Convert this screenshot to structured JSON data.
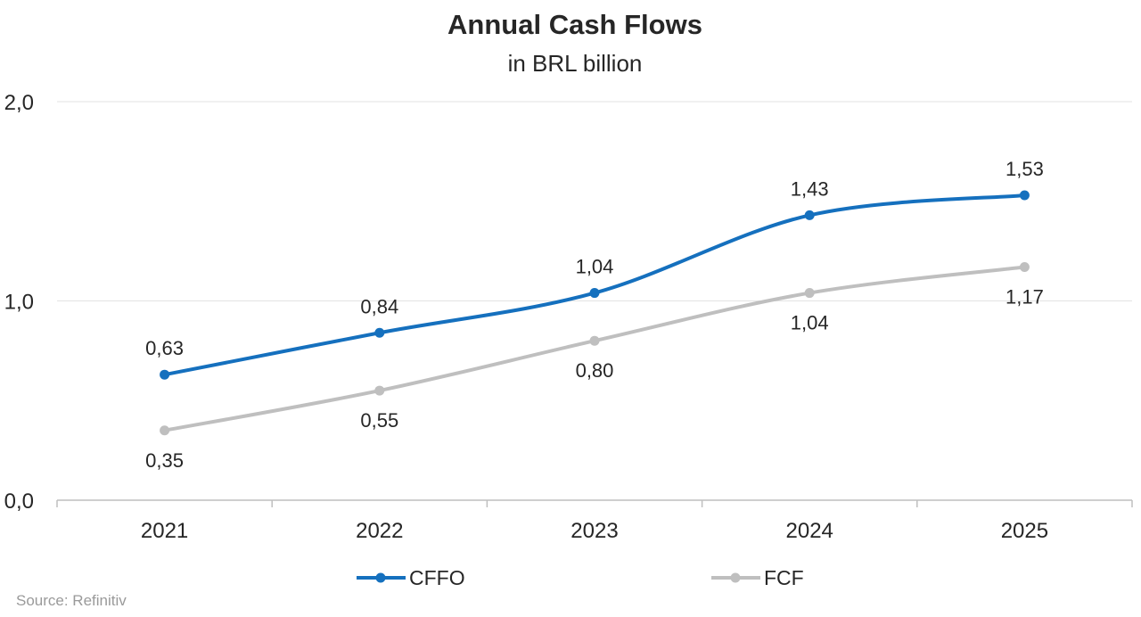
{
  "title": "Annual Cash Flows",
  "subtitle": "in BRL billion",
  "source": "Source: Refinitiv",
  "chart_data": {
    "type": "line",
    "title": "Annual Cash Flows",
    "subtitle": "in BRL billion",
    "categories": [
      "2021",
      "2022",
      "2023",
      "2024",
      "2025"
    ],
    "ylim": [
      0,
      2
    ],
    "yticks": [
      0,
      1,
      2
    ],
    "ytick_labels": [
      "0,0",
      "1,0",
      "2,0"
    ],
    "grid": true,
    "smooth": true,
    "legend_position": "bottom",
    "series": [
      {
        "name": "CFFO",
        "color": "#1570be",
        "values": [
          0.63,
          0.84,
          1.04,
          1.43,
          1.53
        ],
        "labels": [
          "0,63",
          "0,84",
          "1,04",
          "1,43",
          "1,53"
        ],
        "label_position": "above"
      },
      {
        "name": "FCF",
        "color": "#bfbfbf",
        "values": [
          0.35,
          0.55,
          0.8,
          1.04,
          1.17
        ],
        "labels": [
          "0,35",
          "0,55",
          "0,80",
          "1,04",
          "1,17"
        ],
        "label_position": "below"
      }
    ]
  }
}
